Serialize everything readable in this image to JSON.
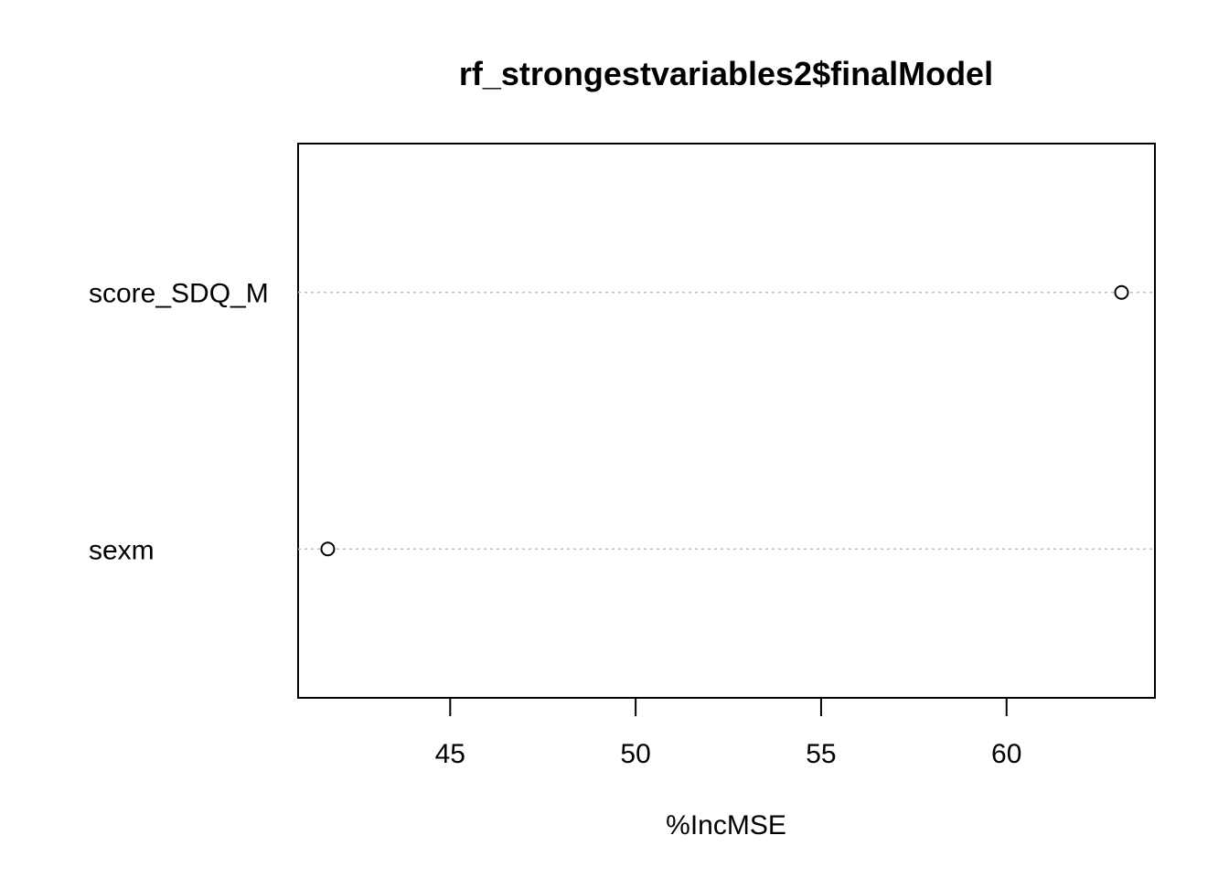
{
  "chart_data": {
    "type": "scatter",
    "title": "rf_strongestvariables2$finalModel",
    "xlabel": "%IncMSE",
    "ylabel": "",
    "categories": [
      "score_SDQ_M",
      "sexm"
    ],
    "values": [
      63.1,
      41.7
    ],
    "xlim": [
      40.9,
      64.0
    ],
    "xticks": [
      45,
      50,
      55,
      60
    ],
    "xtick_labels": [
      "45",
      "50",
      "55",
      "60"
    ],
    "grid": "dotted horizontal lines per category",
    "marker": "open circle",
    "colors": {
      "marker": "#000000",
      "grid": "#bebebe",
      "frame": "#000000"
    }
  }
}
